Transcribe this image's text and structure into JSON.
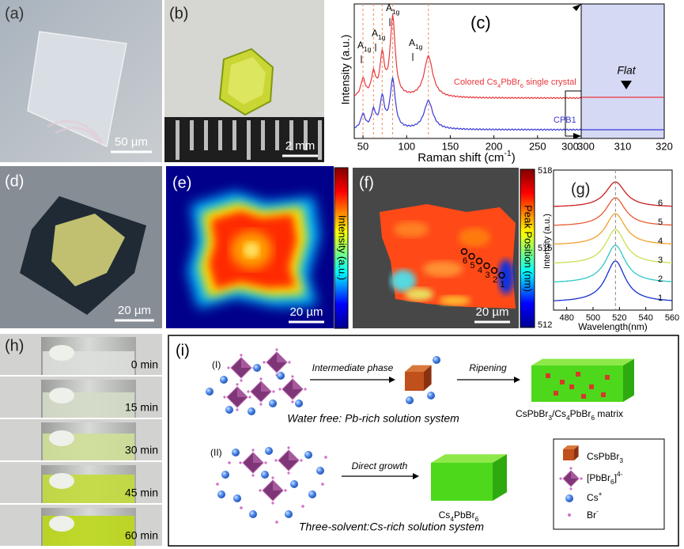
{
  "panels": {
    "a": {
      "label": "(a)",
      "scale_bar": "50 µm"
    },
    "b": {
      "label": "(b)",
      "scale_bar": "2 mm"
    },
    "c": {
      "label": "(c)",
      "y_axis_title": "Intensity (a.u.)",
      "x_axis_title": [
        {
          "text": "Raman shift (cm"
        },
        {
          "text": "-1",
          "style": "sup"
        },
        {
          "text": ")"
        }
      ],
      "x_ticks": [
        50,
        100,
        150,
        200,
        250,
        300
      ],
      "zoom_x_ticks": [
        300,
        310,
        320
      ],
      "peak_labels": [
        [
          {
            "text": "A"
          },
          {
            "text": "1g",
            "style": "sub"
          }
        ],
        [
          {
            "text": "A"
          },
          {
            "text": "1g",
            "style": "sub"
          }
        ],
        [
          {
            "text": "A"
          },
          {
            "text": "1g",
            "style": "sub"
          }
        ],
        [
          {
            "text": "A"
          },
          {
            "text": "1g",
            "style": "sub"
          }
        ]
      ],
      "series_labels": [
        [
          {
            "text": "Colored Cs"
          },
          {
            "text": "4",
            "style": "sub"
          },
          {
            "text": "PbBr"
          },
          {
            "text": "6",
            "style": "sub"
          },
          {
            "text": " single crystal"
          }
        ],
        "CPB1"
      ],
      "annotation": "Flat"
    },
    "d": {
      "label": "(d)",
      "scale_bar": "20 µm"
    },
    "e": {
      "label": "(e)",
      "colorbar_title": "Intensity (a.u.)",
      "scale_bar": "20 µm"
    },
    "f": {
      "label": "(f)",
      "colorbar_title": "Peak Position (nm)",
      "colorbar_ticks": [
        518,
        515,
        512
      ],
      "point_labels": [
        6,
        5,
        4,
        3,
        2,
        1
      ],
      "scale_bar": "20 µm"
    },
    "g": {
      "label": "(g)",
      "y_axis_title": "Intensity (a.u.)",
      "x_axis_title": "Wavelength(nm)",
      "x_ticks": [
        480,
        500,
        520,
        540,
        560
      ],
      "curve_labels": [
        1,
        2,
        3,
        4,
        5,
        6
      ]
    },
    "h": {
      "label": "(h)",
      "times": [
        "0 min",
        "15 min",
        "30 min",
        "45 min",
        "60 min"
      ]
    },
    "i": {
      "label": "(i)",
      "route_1": {
        "label": "(I)",
        "step_1": "Intermediate phase",
        "step_2": "Ripening",
        "product": [
          {
            "text": "CsPbBr"
          },
          {
            "text": "3",
            "style": "sub"
          },
          {
            "text": "/Cs"
          },
          {
            "text": "4",
            "style": "sub"
          },
          {
            "text": "PbBr"
          },
          {
            "text": "6",
            "style": "sub"
          },
          {
            "text": " matrix"
          }
        ],
        "caption": "Water free: Pb-rich solution system"
      },
      "route_2": {
        "label": "(II)",
        "step_1": "Direct growth",
        "product": [
          {
            "text": "Cs"
          },
          {
            "text": "4",
            "style": "sub"
          },
          {
            "text": "PbBr"
          },
          {
            "text": "6",
            "style": "sub"
          }
        ],
        "caption": "Three-solvent:Cs-rich solution system"
      },
      "legend": [
        [
          {
            "text": "CsPbBr"
          },
          {
            "text": "3",
            "style": "sub"
          }
        ],
        [
          {
            "text": "[PbBr"
          },
          {
            "text": "6",
            "style": "sub"
          },
          {
            "text": "]"
          },
          {
            "text": "4-",
            "style": "sup"
          }
        ],
        [
          {
            "text": "Cs"
          },
          {
            "text": "+",
            "style": "sup"
          }
        ],
        [
          {
            "text": "Br"
          },
          {
            "text": "-",
            "style": "sup"
          }
        ]
      ]
    }
  }
}
